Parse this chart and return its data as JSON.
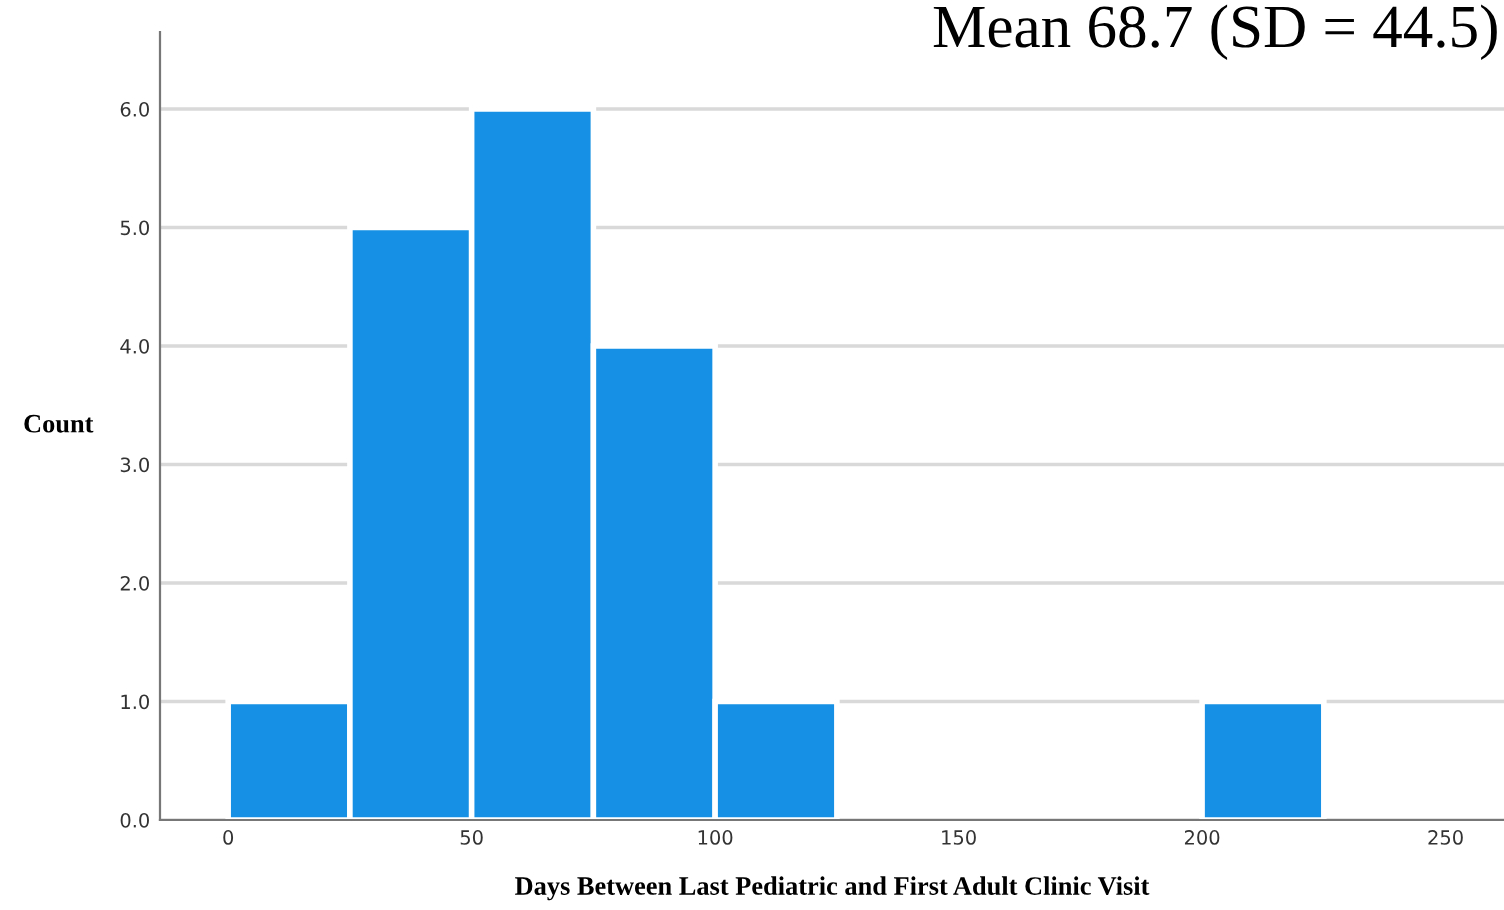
{
  "chart_data": {
    "type": "histogram",
    "title": "Mean 68.7 (SD = 44.5)",
    "xlabel": "Days Between Last Pediatric and First Adult Clinic Visit",
    "ylabel": "Count",
    "bins": [
      0,
      25,
      50,
      75,
      100,
      125,
      150,
      175,
      200,
      225
    ],
    "values": [
      1,
      5,
      6,
      4,
      1,
      0,
      0,
      0,
      1
    ],
    "color": "#1590e4",
    "xlim": [
      -14,
      262
    ],
    "xticks": [
      0,
      50,
      100,
      150,
      200,
      250
    ],
    "ylim": [
      0,
      6.65
    ],
    "yticks": [
      {
        "value": 0,
        "label": "0.0"
      },
      {
        "value": 1,
        "label": "1.0"
      },
      {
        "value": 2,
        "label": "2.0"
      },
      {
        "value": 3,
        "label": "3.0"
      },
      {
        "value": 4,
        "label": "4.0"
      },
      {
        "value": 5,
        "label": "5.0"
      },
      {
        "value": 6,
        "label": "6.0"
      }
    ],
    "grid": "y",
    "legend": false
  }
}
